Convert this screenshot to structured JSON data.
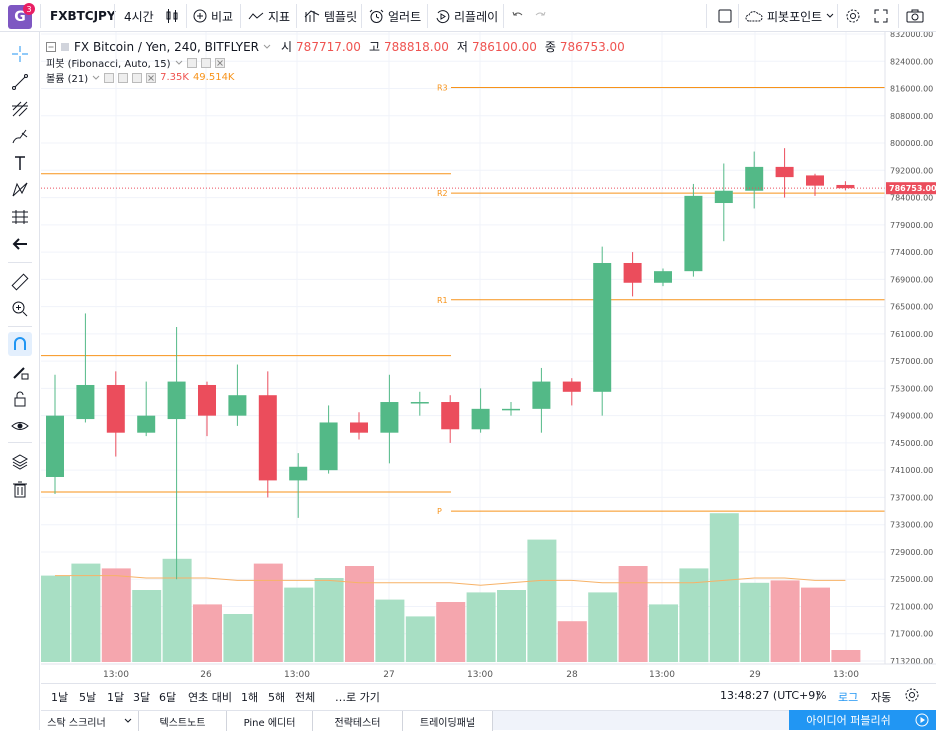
{
  "topbar": {
    "logo": "G",
    "logo_badge": "3",
    "symbol": "FXBTCJPY",
    "interval": "4시간",
    "compare_label": "비교",
    "indicators_label": "지표",
    "templates_label": "템플릿",
    "alert_label": "얼러트",
    "replay_label": "리플레이",
    "pivot_label": "피봇포인트",
    "icons": [
      "candles-icon",
      "plus-circle-icon",
      "indicators-icon",
      "templates-icon",
      "alarm-clock-icon",
      "replay-icon",
      "undo-icon",
      "redo-icon",
      "square-icon",
      "cloud-icon",
      "gear-icon",
      "fullscreen-icon",
      "camera-icon"
    ]
  },
  "legend": {
    "title": "FX Bitcoin / Yen, 240, BITFLYER",
    "open_label": "시",
    "open": "787717.00",
    "high_label": "고",
    "high": "788818.00",
    "low_label": "저",
    "low": "786100.00",
    "close_label": "종",
    "close": "786753.00",
    "pivot_name": "피봇 (Fibonacci, Auto, 15)",
    "volume_name": "볼륨 (21)",
    "volume_value": "7.35K",
    "volume_ma": "49.514K"
  },
  "chart_data": {
    "type": "candlestick",
    "symbol": "FX Bitcoin / Yen, 240, BITFLYER",
    "y_axis_ticks": [
      "832000.00",
      "824000.00",
      "816000.00",
      "808000.00",
      "800000.00",
      "792000.00",
      "784000.00",
      "779000.00",
      "774000.00",
      "769000.00",
      "765000.00",
      "761000.00",
      "757000.00",
      "753000.00",
      "749000.00",
      "745000.00",
      "741000.00",
      "737000.00",
      "733000.00",
      "729000.00",
      "725000.00",
      "721000.00",
      "717000.00",
      "713200.00"
    ],
    "price_label": "786753.00",
    "x_axis_ticks": [
      "13:00",
      "26",
      "13:00",
      "27",
      "13:00",
      "28",
      "13:00",
      "29",
      "13:00"
    ],
    "pivot_levels": [
      {
        "name": "R3",
        "value": 816300
      },
      {
        "name": "R2",
        "value": 785300
      },
      {
        "name": "R1",
        "value": 766000
      },
      {
        "name": "P",
        "value": 735000
      }
    ],
    "prev_pivot_levels": [
      791000,
      757800,
      737800
    ],
    "candles": [
      {
        "o": 740000,
        "h": 755000,
        "l": 737500,
        "c": 749000
      },
      {
        "o": 748500,
        "h": 764000,
        "l": 748000,
        "c": 753500
      },
      {
        "o": 753500,
        "h": 755500,
        "l": 743000,
        "c": 746500
      },
      {
        "o": 746500,
        "h": 754000,
        "l": 746000,
        "c": 749000
      },
      {
        "o": 748500,
        "h": 762000,
        "l": 725000,
        "c": 754000
      },
      {
        "o": 753500,
        "h": 754000,
        "l": 746000,
        "c": 749000
      },
      {
        "o": 749000,
        "h": 756500,
        "l": 747500,
        "c": 752000
      },
      {
        "o": 752000,
        "h": 755500,
        "l": 737000,
        "c": 739500
      },
      {
        "o": 739500,
        "h": 743500,
        "l": 734000,
        "c": 741500
      },
      {
        "o": 741000,
        "h": 750500,
        "l": 740500,
        "c": 748000
      },
      {
        "o": 748000,
        "h": 749500,
        "l": 745500,
        "c": 746500
      },
      {
        "o": 746500,
        "h": 755000,
        "l": 742000,
        "c": 751000
      },
      {
        "o": 751000,
        "h": 752500,
        "l": 749000,
        "c": 751000
      },
      {
        "o": 751000,
        "h": 752000,
        "l": 745000,
        "c": 747000
      },
      {
        "o": 747000,
        "h": 753000,
        "l": 746500,
        "c": 750000
      },
      {
        "o": 750000,
        "h": 751000,
        "l": 749000,
        "c": 750000
      },
      {
        "o": 750000,
        "h": 756000,
        "l": 746500,
        "c": 754000
      },
      {
        "o": 754000,
        "h": 754500,
        "l": 750500,
        "c": 752500
      },
      {
        "o": 752500,
        "h": 775000,
        "l": 749000,
        "c": 772000
      },
      {
        "o": 772000,
        "h": 774000,
        "l": 766500,
        "c": 768500
      },
      {
        "o": 768500,
        "h": 771000,
        "l": 768000,
        "c": 770500
      },
      {
        "o": 770500,
        "h": 788000,
        "l": 769500,
        "c": 784500
      },
      {
        "o": 783000,
        "h": 794000,
        "l": 776000,
        "c": 786000
      },
      {
        "o": 786000,
        "h": 797500,
        "l": 782000,
        "c": 793000
      },
      {
        "o": 793000,
        "h": 798500,
        "l": 784000,
        "c": 790000
      },
      {
        "o": 790500,
        "h": 791000,
        "l": 784500,
        "c": 787500
      },
      {
        "o": 787700,
        "h": 788800,
        "l": 786100,
        "c": 786750
      }
    ],
    "volumes": [
      36,
      41,
      39,
      30,
      43,
      24,
      20,
      41,
      31,
      35,
      40,
      26,
      19,
      25,
      29,
      30,
      51,
      17,
      29,
      40,
      24,
      39,
      62,
      33,
      34,
      31,
      5
    ],
    "volume_ma": [
      36,
      36,
      36,
      35,
      35,
      35,
      34,
      34,
      34,
      34,
      33,
      33,
      33,
      33,
      32,
      33,
      34,
      34,
      33,
      33,
      33,
      33,
      34,
      35,
      35,
      34,
      34
    ]
  },
  "bottombar": {
    "ranges": [
      "1날",
      "5날",
      "1달",
      "3달",
      "6달",
      "연초 대비",
      "1해",
      "5해",
      "전체"
    ],
    "goto": "…로 가기",
    "clock": "13:48:27 (UTC+9)",
    "percent": "%",
    "log": "로그",
    "auto": "자동"
  },
  "footer": {
    "tabs": [
      "스탁 스크리너",
      "텍스트노트",
      "Pine 에디터",
      "전략테스터",
      "트레이딩패널"
    ],
    "publish": "아이디어 퍼블리쉬"
  },
  "colors": {
    "up": "#26a69a",
    "down": "#ef5350",
    "up_candle": "#53b987",
    "down_candle": "#eb4d5c",
    "pivot": "#f7931a",
    "price_tag": "#eb4d5c"
  }
}
